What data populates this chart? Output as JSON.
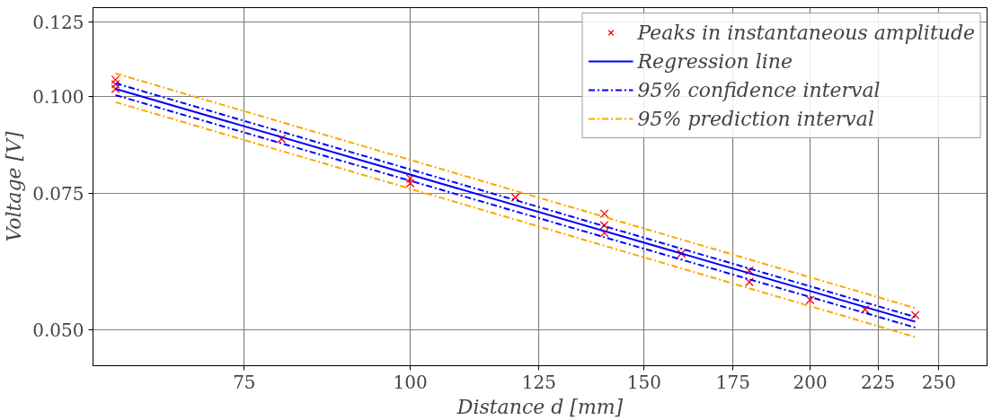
{
  "chart_data": {
    "type": "scatter",
    "xlabel": "Distance d [mm]",
    "ylabel": "Voltage [V]",
    "log": "xy",
    "grid": true,
    "legend": "top right",
    "xlim": [
      57.7,
      271.8
    ],
    "ylim": [
      0.0449,
      0.1304
    ],
    "xticks": [
      75,
      100,
      125,
      150,
      175,
      200,
      225,
      250
    ],
    "yticks": [
      {
        "value": 0.05,
        "label": "0.050"
      },
      {
        "value": 0.075,
        "label": "0.075"
      },
      {
        "value": 0.1,
        "label": "0.100"
      },
      0.125
    ],
    "series": [
      {
        "name": "Peaks in instantaneous amplitude",
        "marker": "cross",
        "color": "#ff0000",
        "x": [
          60,
          60,
          60,
          80,
          100,
          100,
          120,
          140,
          140,
          140,
          160,
          180,
          180,
          200,
          220,
          240
        ],
        "values": [
          0.1052,
          0.1038,
          0.1024,
          0.0882,
          0.0784,
          0.0773,
          0.0741,
          0.0706,
          0.0682,
          0.0667,
          0.0627,
          0.0596,
          0.0576,
          0.0546,
          0.0531,
          0.0522
        ]
      },
      {
        "name": "Regression line",
        "type": "line",
        "line_style": "solid",
        "color": "#0000ff",
        "x": [
          60,
          240
        ],
        "values": [
          0.1024,
          0.0512
        ]
      },
      {
        "name": "95% confidence interval",
        "type": "line",
        "line_style": "dashdot",
        "color": "#0000ff",
        "x": [
          60,
          240
        ],
        "values": [
          0.1041,
          0.0519
        ]
      },
      {
        "type": "line",
        "line_style": "dashdot",
        "color": "#0000ff",
        "x": [
          60,
          240
        ],
        "values": [
          0.1005,
          0.0503
        ]
      },
      {
        "name": "95% prediction interval",
        "type": "line",
        "line_style": "dashdot",
        "color": "#ffa500",
        "x": [
          60,
          240
        ],
        "values": [
          0.1072,
          0.0533
        ]
      },
      {
        "type": "line",
        "line_style": "dashdot",
        "color": "#ffa500",
        "x": [
          60,
          240
        ],
        "values": [
          0.0984,
          0.0489
        ]
      }
    ]
  }
}
